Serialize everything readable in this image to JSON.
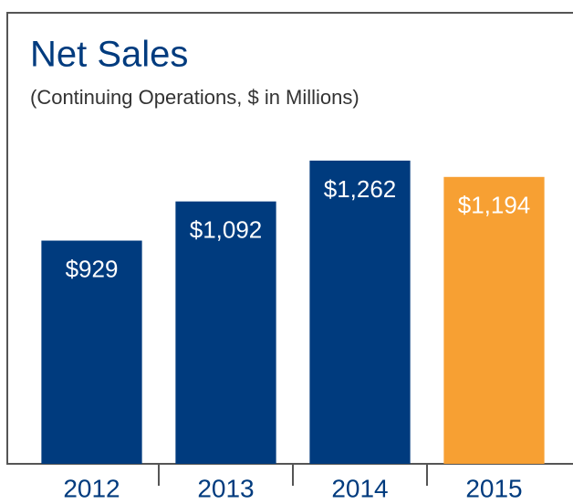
{
  "chart_data": {
    "type": "bar",
    "title": "Net Sales",
    "subtitle": "(Continuing Operations, $ in Millions)",
    "categories": [
      "2012",
      "2013",
      "2014",
      "2015"
    ],
    "values": [
      929,
      1092,
      1262,
      1194
    ],
    "value_labels": [
      "$929",
      "$1,092",
      "$1,262",
      "$1,194"
    ],
    "colors": [
      "#003b7e",
      "#003b7e",
      "#003b7e",
      "#f7a033"
    ],
    "ylim": [
      0,
      1900
    ]
  }
}
